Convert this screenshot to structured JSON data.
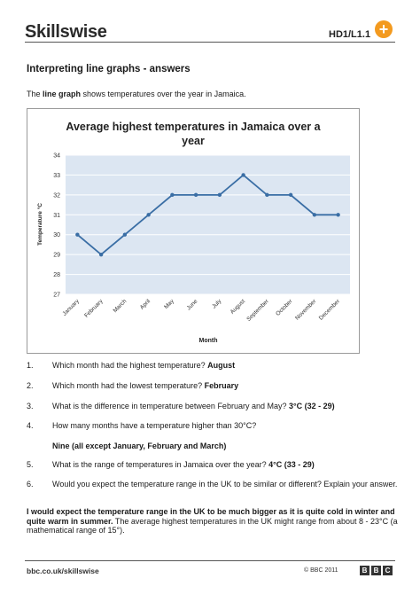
{
  "header": {
    "logo": "Skillswise",
    "code": "HD1/L1.1",
    "plus": "+"
  },
  "heading": "Interpreting line graphs - answers",
  "intro": {
    "before": "The ",
    "bold": "line graph",
    "after": " shows temperatures over the year in Jamaica."
  },
  "chart_data": {
    "type": "line",
    "title_line1": "Average highest temperatures in Jamaica over a",
    "title_line2": "year",
    "xlabel": "Month",
    "ylabel": "Temperature °C",
    "categories": [
      "January",
      "February",
      "March",
      "April",
      "May",
      "June",
      "July",
      "August",
      "September",
      "October",
      "November",
      "December"
    ],
    "values": [
      30,
      29,
      30,
      31,
      32,
      32,
      32,
      33,
      32,
      32,
      31,
      31
    ],
    "ylim": [
      27,
      34
    ],
    "yticks": [
      "27",
      "28",
      "29",
      "30",
      "31",
      "32",
      "33",
      "34"
    ],
    "grid": true,
    "colors": {
      "line": "#3a6ea5",
      "plot_bg": "#dce6f2",
      "grid": "#ffffff"
    }
  },
  "questions": [
    {
      "num": "1.",
      "text": "Which month had the highest temperature? ",
      "answer": "August"
    },
    {
      "num": "2.",
      "text": "Which month had the lowest temperature? ",
      "answer": "February"
    },
    {
      "num": "3.",
      "text": "What is the difference in temperature between February and May? ",
      "answer": "3°C (32 - 29)"
    },
    {
      "num": "4.",
      "text": "How many months have a temperature higher than 30°C?",
      "answer": "Nine (all except January, February and March)"
    },
    {
      "num": "5.",
      "text": "What is the range of temperatures in Jamaica over the year? ",
      "answer": "4°C (33 - 29)"
    },
    {
      "num": "6.",
      "text": "Would you expect the temperature range in the UK to be similar or different? Explain your answer.",
      "answer": ""
    }
  ],
  "final_answer": {
    "bold": "I would expect the temperature range in the UK to be much bigger as it is quite cold in winter and quite warm in summer.",
    "normal": " The average highest temperatures in the UK might range from about 8 - 23°C (a mathematical range of 15°)."
  },
  "footer": {
    "url": "bbc.co.uk/skillswise",
    "copyright": "© BBC 2011",
    "bbc": [
      "B",
      "B",
      "C"
    ]
  }
}
